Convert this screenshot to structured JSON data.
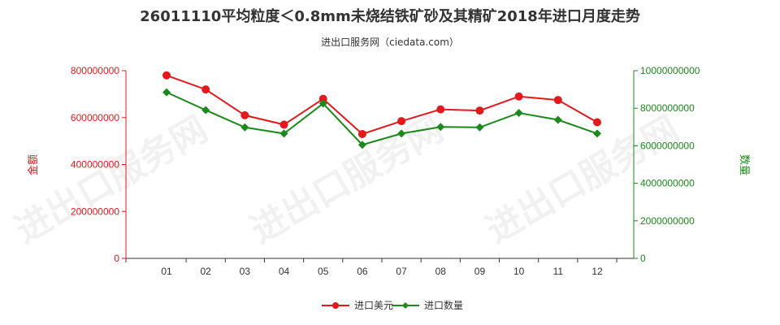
{
  "title": "26011110平均粒度＜0.8mm未烧结铁矿砂及其精矿2018年进口月度走势",
  "subtitle": "进出口服务网（ciedata.com）",
  "watermark": "进出口服务网",
  "colors": {
    "left_axis": "#e31a1c",
    "right_axis": "#1a8a1a",
    "series_value": "#e31a1c",
    "series_qty": "#1a8a1a",
    "axis_bottom": "#333333"
  },
  "chart_data": {
    "type": "line",
    "categories": [
      "01",
      "02",
      "03",
      "04",
      "05",
      "06",
      "07",
      "08",
      "09",
      "10",
      "11",
      "12"
    ],
    "left_axis": {
      "label": "金额",
      "ylim": [
        0,
        800000000
      ],
      "ticks": [
        "0",
        "200000000",
        "400000000",
        "600000000",
        "800000000"
      ]
    },
    "right_axis": {
      "label": "数量",
      "ylim": [
        0,
        10000000000
      ],
      "ticks": [
        "0",
        "2000000000",
        "4000000000",
        "6000000000",
        "8000000000",
        "10000000000"
      ]
    },
    "series": [
      {
        "name": "进口美元",
        "axis": "left",
        "marker": "circle",
        "values": [
          780000000,
          720000000,
          610000000,
          570000000,
          680000000,
          530000000,
          585000000,
          635000000,
          630000000,
          690000000,
          675000000,
          580000000
        ]
      },
      {
        "name": "进口数量",
        "axis": "right",
        "marker": "diamond",
        "values": [
          8850000000,
          7900000000,
          6980000000,
          6650000000,
          8250000000,
          6050000000,
          6650000000,
          7000000000,
          6980000000,
          7750000000,
          7380000000,
          6650000000
        ]
      }
    ],
    "grid": false,
    "legend_position": "bottom-center"
  }
}
